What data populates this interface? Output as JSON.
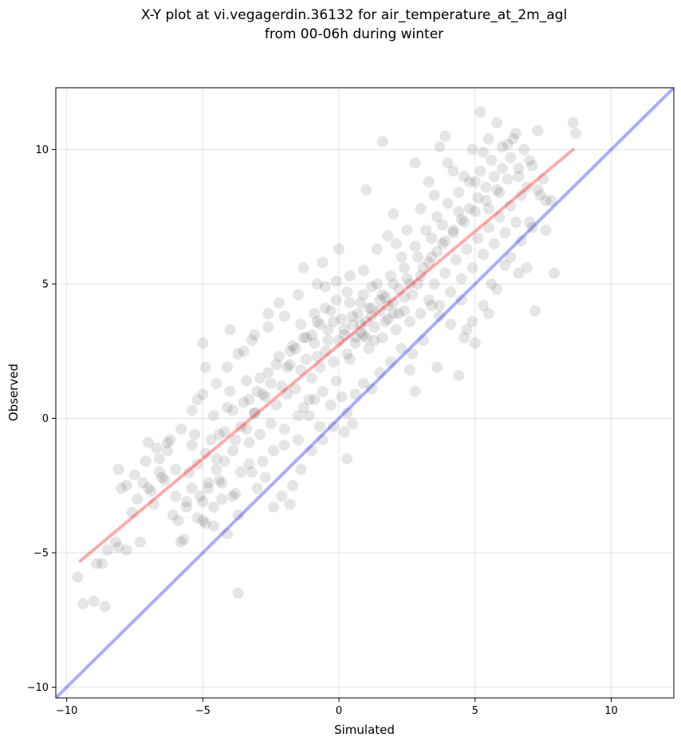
{
  "chart_data": {
    "type": "scatter",
    "title_lines": [
      "X-Y plot at vi.vegagerdin.36132 for air_temperature_at_2m_agl",
      "from 00-06h during winter"
    ],
    "xlabel": "Simulated",
    "ylabel": "Observed",
    "xlim": [
      -10.4,
      12.3
    ],
    "ylim": [
      -10.4,
      12.3
    ],
    "xticks": [
      -10,
      -5,
      0,
      5,
      10
    ],
    "yticks": [
      -10,
      -5,
      0,
      5,
      10
    ],
    "xtick_labels": [
      "−10",
      "−5",
      "0",
      "5",
      "10"
    ],
    "ytick_labels": [
      "−10",
      "−5",
      "0",
      "5",
      "10"
    ],
    "grid": true,
    "scatter_color": "#000000",
    "scatter_alpha": 0.1,
    "lines": [
      {
        "kind": "fit",
        "color": "#ff0000",
        "alpha": 0.33,
        "points": [
          [
            -9.5,
            -5.3
          ],
          [
            8.6,
            10.0
          ]
        ]
      },
      {
        "kind": "identity",
        "color": "#0000ff",
        "alpha": 0.33,
        "points": [
          [
            -10.4,
            -10.4
          ],
          [
            12.3,
            12.3
          ]
        ]
      }
    ],
    "points": [
      [
        -9.6,
        -5.9
      ],
      [
        -9.4,
        -6.9
      ],
      [
        -9.0,
        -6.8
      ],
      [
        -8.6,
        -7.0
      ],
      [
        -8.9,
        -5.4
      ],
      [
        -8.7,
        -5.4
      ],
      [
        -8.5,
        -4.9
      ],
      [
        -8.2,
        -4.6
      ],
      [
        -8.1,
        -4.8
      ],
      [
        -7.8,
        -4.9
      ],
      [
        -7.6,
        -3.5
      ],
      [
        -7.4,
        -3.0
      ],
      [
        -7.3,
        -4.6
      ],
      [
        -8.0,
        -2.6
      ],
      [
        -8.1,
        -1.9
      ],
      [
        -7.2,
        -2.4
      ],
      [
        -7.1,
        -1.6
      ],
      [
        -7.0,
        -0.9
      ],
      [
        -6.9,
        -2.7
      ],
      [
        -6.6,
        -1.5
      ],
      [
        -6.4,
        -2.3
      ],
      [
        -6.3,
        -1.2
      ],
      [
        -6.2,
        -0.8
      ],
      [
        -6.0,
        -2.9
      ],
      [
        -5.9,
        -3.8
      ],
      [
        -5.8,
        -4.6
      ],
      [
        -5.7,
        -4.5
      ],
      [
        -5.6,
        -3.3
      ],
      [
        -5.5,
        -2.0
      ],
      [
        -5.4,
        -1.0
      ],
      [
        -5.3,
        -0.6
      ],
      [
        -5.2,
        -1.7
      ],
      [
        -5.0,
        -3.1
      ],
      [
        -4.9,
        -3.9
      ],
      [
        -4.8,
        -2.6
      ],
      [
        -4.7,
        -0.8
      ],
      [
        -4.6,
        0.1
      ],
      [
        -4.5,
        -1.5
      ],
      [
        -4.4,
        -2.3
      ],
      [
        -4.3,
        -3.0
      ],
      [
        -4.2,
        -0.5
      ],
      [
        -4.1,
        0.4
      ],
      [
        -4.0,
        1.0
      ],
      [
        -3.9,
        -1.2
      ],
      [
        -3.8,
        -2.8
      ],
      [
        -3.7,
        -3.6
      ],
      [
        -3.6,
        -0.3
      ],
      [
        -3.5,
        0.6
      ],
      [
        -3.4,
        1.4
      ],
      [
        -3.3,
        -0.9
      ],
      [
        -3.2,
        -2.0
      ],
      [
        -3.1,
        0.2
      ],
      [
        -3.0,
        1.0
      ],
      [
        -2.9,
        -0.6
      ],
      [
        -2.8,
        -1.6
      ],
      [
        -2.7,
        0.8
      ],
      [
        -2.6,
        1.7
      ],
      [
        -2.5,
        -0.2
      ],
      [
        -2.4,
        -1.2
      ],
      [
        -2.3,
        0.5
      ],
      [
        -2.2,
        2.3
      ],
      [
        -2.1,
        1.2
      ],
      [
        -2.0,
        -0.4
      ],
      [
        -1.9,
        0.9
      ],
      [
        -1.8,
        2.0
      ],
      [
        -1.7,
        2.7
      ],
      [
        -1.6,
        1.1
      ],
      [
        -1.5,
        0.1
      ],
      [
        -1.4,
        1.8
      ],
      [
        -1.3,
        3.0
      ],
      [
        -1.2,
        2.2
      ],
      [
        -1.1,
        0.7
      ],
      [
        -1.0,
        1.5
      ],
      [
        -0.9,
        2.8
      ],
      [
        -0.8,
        3.6
      ],
      [
        -0.7,
        1.9
      ],
      [
        -0.6,
        1.0
      ],
      [
        -0.5,
        2.5
      ],
      [
        -0.4,
        3.3
      ],
      [
        -0.3,
        4.0
      ],
      [
        -0.2,
        2.1
      ],
      [
        -0.1,
        1.4
      ],
      [
        0.0,
        2.9
      ],
      [
        0.1,
        3.7
      ],
      [
        0.2,
        3.1
      ],
      [
        0.3,
        2.4
      ],
      [
        0.4,
        4.3
      ],
      [
        0.5,
        3.5
      ],
      [
        0.6,
        2.8
      ],
      [
        0.7,
        3.9
      ],
      [
        0.8,
        3.2
      ],
      [
        0.9,
        4.6
      ],
      [
        1.0,
        3.6
      ],
      [
        1.1,
        2.6
      ],
      [
        1.2,
        4.1
      ],
      [
        1.3,
        3.4
      ],
      [
        1.4,
        5.0
      ],
      [
        1.5,
        4.0
      ],
      [
        1.6,
        3.0
      ],
      [
        1.7,
        4.5
      ],
      [
        1.8,
        3.7
      ],
      [
        1.9,
        5.3
      ],
      [
        2.0,
        4.3
      ],
      [
        2.1,
        3.3
      ],
      [
        2.2,
        4.8
      ],
      [
        2.3,
        6.0
      ],
      [
        2.4,
        4.0
      ],
      [
        2.5,
        5.2
      ],
      [
        2.6,
        3.6
      ],
      [
        2.7,
        4.6
      ],
      [
        2.8,
        6.4
      ],
      [
        2.9,
        5.0
      ],
      [
        3.0,
        3.9
      ],
      [
        3.1,
        5.6
      ],
      [
        3.2,
        7.0
      ],
      [
        3.3,
        4.4
      ],
      [
        3.4,
        6.0
      ],
      [
        3.5,
        5.0
      ],
      [
        3.6,
        7.5
      ],
      [
        3.7,
        4.2
      ],
      [
        3.8,
        6.5
      ],
      [
        3.9,
        5.4
      ],
      [
        4.0,
        8.0
      ],
      [
        4.1,
        4.7
      ],
      [
        4.2,
        6.9
      ],
      [
        4.3,
        5.9
      ],
      [
        4.4,
        8.4
      ],
      [
        4.5,
        5.2
      ],
      [
        4.6,
        7.3
      ],
      [
        4.7,
        6.3
      ],
      [
        4.8,
        8.8
      ],
      [
        4.9,
        5.6
      ],
      [
        5.0,
        7.7
      ],
      [
        5.1,
        6.7
      ],
      [
        5.2,
        9.2
      ],
      [
        5.3,
        6.1
      ],
      [
        5.4,
        8.1
      ],
      [
        5.5,
        7.1
      ],
      [
        5.6,
        9.6
      ],
      [
        5.7,
        6.5
      ],
      [
        5.8,
        8.5
      ],
      [
        5.9,
        7.5
      ],
      [
        6.0,
        10.1
      ],
      [
        6.1,
        6.9
      ],
      [
        6.2,
        8.9
      ],
      [
        6.3,
        7.9
      ],
      [
        6.4,
        10.4
      ],
      [
        6.5,
        7.3
      ],
      [
        6.6,
        9.3
      ],
      [
        6.7,
        8.3
      ],
      [
        6.8,
        10.0
      ],
      [
        6.9,
        8.6
      ],
      [
        7.0,
        9.6
      ],
      [
        7.1,
        7.1
      ],
      [
        7.3,
        10.7
      ],
      [
        7.4,
        8.3
      ],
      [
        7.6,
        8.1
      ],
      [
        7.9,
        5.4
      ],
      [
        8.6,
        11.0
      ],
      [
        8.7,
        10.6
      ],
      [
        5.2,
        11.4
      ],
      [
        5.8,
        11.0
      ],
      [
        1.6,
        10.3
      ],
      [
        3.7,
        10.1
      ],
      [
        3.9,
        10.5
      ],
      [
        4.2,
        9.2
      ],
      [
        -3.7,
        -6.5
      ],
      [
        0.3,
        -1.5
      ],
      [
        -4.6,
        -4.0
      ],
      [
        -5.2,
        -3.7
      ],
      [
        -4.1,
        -4.3
      ],
      [
        -4.0,
        3.3
      ],
      [
        -3.5,
        2.5
      ],
      [
        -3.1,
        3.1
      ],
      [
        -2.6,
        3.9
      ],
      [
        -2.2,
        4.3
      ],
      [
        -1.3,
        5.6
      ],
      [
        -0.6,
        5.8
      ],
      [
        0.0,
        6.3
      ],
      [
        -0.5,
        4.9
      ],
      [
        -5.0,
        2.8
      ],
      [
        -4.9,
        1.9
      ],
      [
        -5.2,
        0.7
      ],
      [
        0.9,
        3.1
      ],
      [
        0.6,
        3.0
      ],
      [
        1.2,
        3.8
      ],
      [
        1.3,
        2.9
      ],
      [
        0.4,
        2.2
      ],
      [
        1.5,
        4.4
      ],
      [
        2.2,
        3.9
      ],
      [
        1.8,
        4.2
      ],
      [
        2.0,
        3.9
      ],
      [
        2.4,
        4.5
      ],
      [
        2.6,
        5.0
      ],
      [
        0.8,
        3.5
      ],
      [
        1.0,
        3.0
      ],
      [
        1.1,
        4.1
      ],
      [
        1.7,
        3.6
      ],
      [
        0.5,
        3.8
      ],
      [
        0.2,
        3.3
      ],
      [
        -0.4,
        2.9
      ],
      [
        -0.2,
        3.6
      ],
      [
        -0.8,
        2.3
      ],
      [
        -1.0,
        3.1
      ],
      [
        -1.6,
        2.6
      ],
      [
        -1.9,
        1.9
      ],
      [
        -2.5,
        1.3
      ],
      [
        -2.8,
        0.9
      ],
      [
        -3.1,
        0.2
      ],
      [
        -3.4,
        -0.4
      ],
      [
        -3.8,
        -0.8
      ],
      [
        -4.2,
        -1.6
      ],
      [
        -4.5,
        -1.9
      ],
      [
        -4.8,
        -2.4
      ],
      [
        -5.1,
        -2.9
      ],
      [
        -5.6,
        -3.1
      ],
      [
        -6.1,
        -3.6
      ],
      [
        -6.5,
        -2.2
      ],
      [
        -6.7,
        -1.1
      ],
      [
        -6.0,
        -1.9
      ],
      [
        -5.4,
        -2.6
      ],
      [
        -4.9,
        -1.3
      ],
      [
        -4.4,
        -0.6
      ],
      [
        -3.9,
        0.3
      ],
      [
        -3.3,
        0.7
      ],
      [
        -2.9,
        1.5
      ],
      [
        -2.3,
        2.0
      ],
      [
        -1.8,
        2.5
      ],
      [
        -1.2,
        3.0
      ],
      [
        -0.7,
        3.5
      ],
      [
        3.0,
        5.3
      ],
      [
        3.3,
        5.8
      ],
      [
        3.6,
        6.2
      ],
      [
        3.9,
        6.6
      ],
      [
        4.2,
        7.0
      ],
      [
        4.5,
        7.4
      ],
      [
        4.8,
        7.8
      ],
      [
        5.1,
        8.2
      ],
      [
        5.4,
        8.6
      ],
      [
        5.7,
        9.0
      ],
      [
        6.0,
        9.3
      ],
      [
        6.3,
        9.7
      ],
      [
        6.6,
        9.0
      ],
      [
        5.9,
        8.4
      ],
      [
        5.5,
        7.8
      ],
      [
        5.0,
        8.8
      ],
      [
        4.4,
        7.7
      ],
      [
        3.8,
        7.2
      ],
      [
        3.4,
        6.7
      ],
      [
        2.9,
        6.0
      ],
      [
        2.4,
        5.6
      ],
      [
        2.0,
        5.0
      ],
      [
        1.6,
        4.6
      ],
      [
        1.2,
        4.9
      ],
      [
        0.8,
        4.3
      ],
      [
        0.3,
        4.7
      ],
      [
        -0.1,
        4.4
      ],
      [
        -0.5,
        4.1
      ],
      [
        -0.9,
        3.9
      ],
      [
        -1.4,
        3.5
      ],
      [
        3.4,
        4.2
      ],
      [
        3.7,
        3.8
      ],
      [
        4.1,
        3.5
      ],
      [
        4.5,
        4.4
      ],
      [
        4.9,
        3.6
      ],
      [
        5.3,
        4.2
      ],
      [
        5.8,
        4.8
      ],
      [
        6.1,
        5.7
      ],
      [
        5.5,
        3.9
      ],
      [
        4.7,
        3.3
      ],
      [
        3.1,
        2.9
      ],
      [
        2.7,
        2.4
      ],
      [
        2.3,
        2.6
      ],
      [
        1.9,
        2.1
      ],
      [
        1.5,
        1.7
      ],
      [
        2.6,
        1.8
      ],
      [
        2.8,
        1.0
      ],
      [
        3.6,
        1.9
      ],
      [
        4.4,
        1.6
      ],
      [
        4.6,
        3.0
      ],
      [
        5.0,
        2.8
      ],
      [
        5.6,
        5.0
      ],
      [
        6.3,
        6.0
      ],
      [
        6.6,
        5.4
      ],
      [
        7.2,
        4.0
      ],
      [
        6.9,
        5.6
      ],
      [
        7.0,
        7.3
      ],
      [
        7.5,
        8.9
      ],
      [
        7.3,
        8.5
      ],
      [
        6.7,
        6.6
      ],
      [
        0.1,
        0.8
      ],
      [
        0.3,
        0.2
      ],
      [
        0.6,
        0.9
      ],
      [
        0.9,
        1.3
      ],
      [
        1.2,
        1.1
      ],
      [
        -0.2,
        -0.3
      ],
      [
        -0.6,
        -0.8
      ],
      [
        -1.0,
        -1.2
      ],
      [
        -1.4,
        -1.9
      ],
      [
        -1.7,
        -2.5
      ],
      [
        -2.1,
        -2.9
      ],
      [
        -2.4,
        -3.3
      ],
      [
        -2.7,
        -2.2
      ],
      [
        -3.0,
        -2.6
      ],
      [
        -3.3,
        -1.7
      ],
      [
        -3.6,
        -2.0
      ],
      [
        -3.9,
        -2.9
      ],
      [
        -4.3,
        -2.4
      ],
      [
        -4.6,
        -3.3
      ],
      [
        -5.0,
        -3.8
      ],
      [
        -1.8,
        -3.2
      ],
      [
        -2.0,
        -1.0
      ],
      [
        -1.5,
        -0.8
      ],
      [
        -1.1,
        0.1
      ],
      [
        -0.7,
        -0.3
      ],
      [
        -0.3,
        0.5
      ],
      [
        0.2,
        -0.5
      ],
      [
        0.5,
        -0.2
      ],
      [
        -0.9,
        0.7
      ],
      [
        -1.3,
        0.4
      ],
      [
        2.1,
        6.5
      ],
      [
        2.5,
        7.0
      ],
      [
        1.8,
        6.8
      ],
      [
        1.4,
        6.3
      ],
      [
        3.0,
        7.8
      ],
      [
        3.5,
        8.3
      ],
      [
        2.8,
        9.5
      ],
      [
        3.3,
        8.8
      ],
      [
        2.0,
        7.6
      ],
      [
        1.0,
        8.5
      ],
      [
        4.0,
        9.5
      ],
      [
        4.6,
        9.0
      ],
      [
        5.3,
        9.9
      ],
      [
        4.9,
        10.0
      ],
      [
        5.5,
        10.4
      ],
      [
        6.5,
        10.6
      ],
      [
        6.2,
        10.2
      ],
      [
        7.1,
        9.4
      ],
      [
        7.8,
        8.1
      ],
      [
        7.6,
        7.0
      ],
      [
        0.9,
        5.5
      ],
      [
        0.4,
        5.3
      ],
      [
        -0.1,
        5.1
      ],
      [
        -0.8,
        5.0
      ],
      [
        -1.5,
        4.6
      ],
      [
        -2.0,
        3.8
      ],
      [
        -2.6,
        3.4
      ],
      [
        -3.2,
        2.9
      ],
      [
        -3.7,
        2.4
      ],
      [
        -4.1,
        1.9
      ],
      [
        -4.5,
        1.3
      ],
      [
        -5.0,
        0.9
      ],
      [
        -5.4,
        0.3
      ],
      [
        -5.8,
        -0.4
      ],
      [
        -6.3,
        -0.9
      ],
      [
        -6.6,
        -2.0
      ],
      [
        -7.0,
        -2.6
      ],
      [
        -7.5,
        -2.1
      ],
      [
        -7.8,
        -2.5
      ],
      [
        -6.8,
        -3.2
      ]
    ]
  }
}
